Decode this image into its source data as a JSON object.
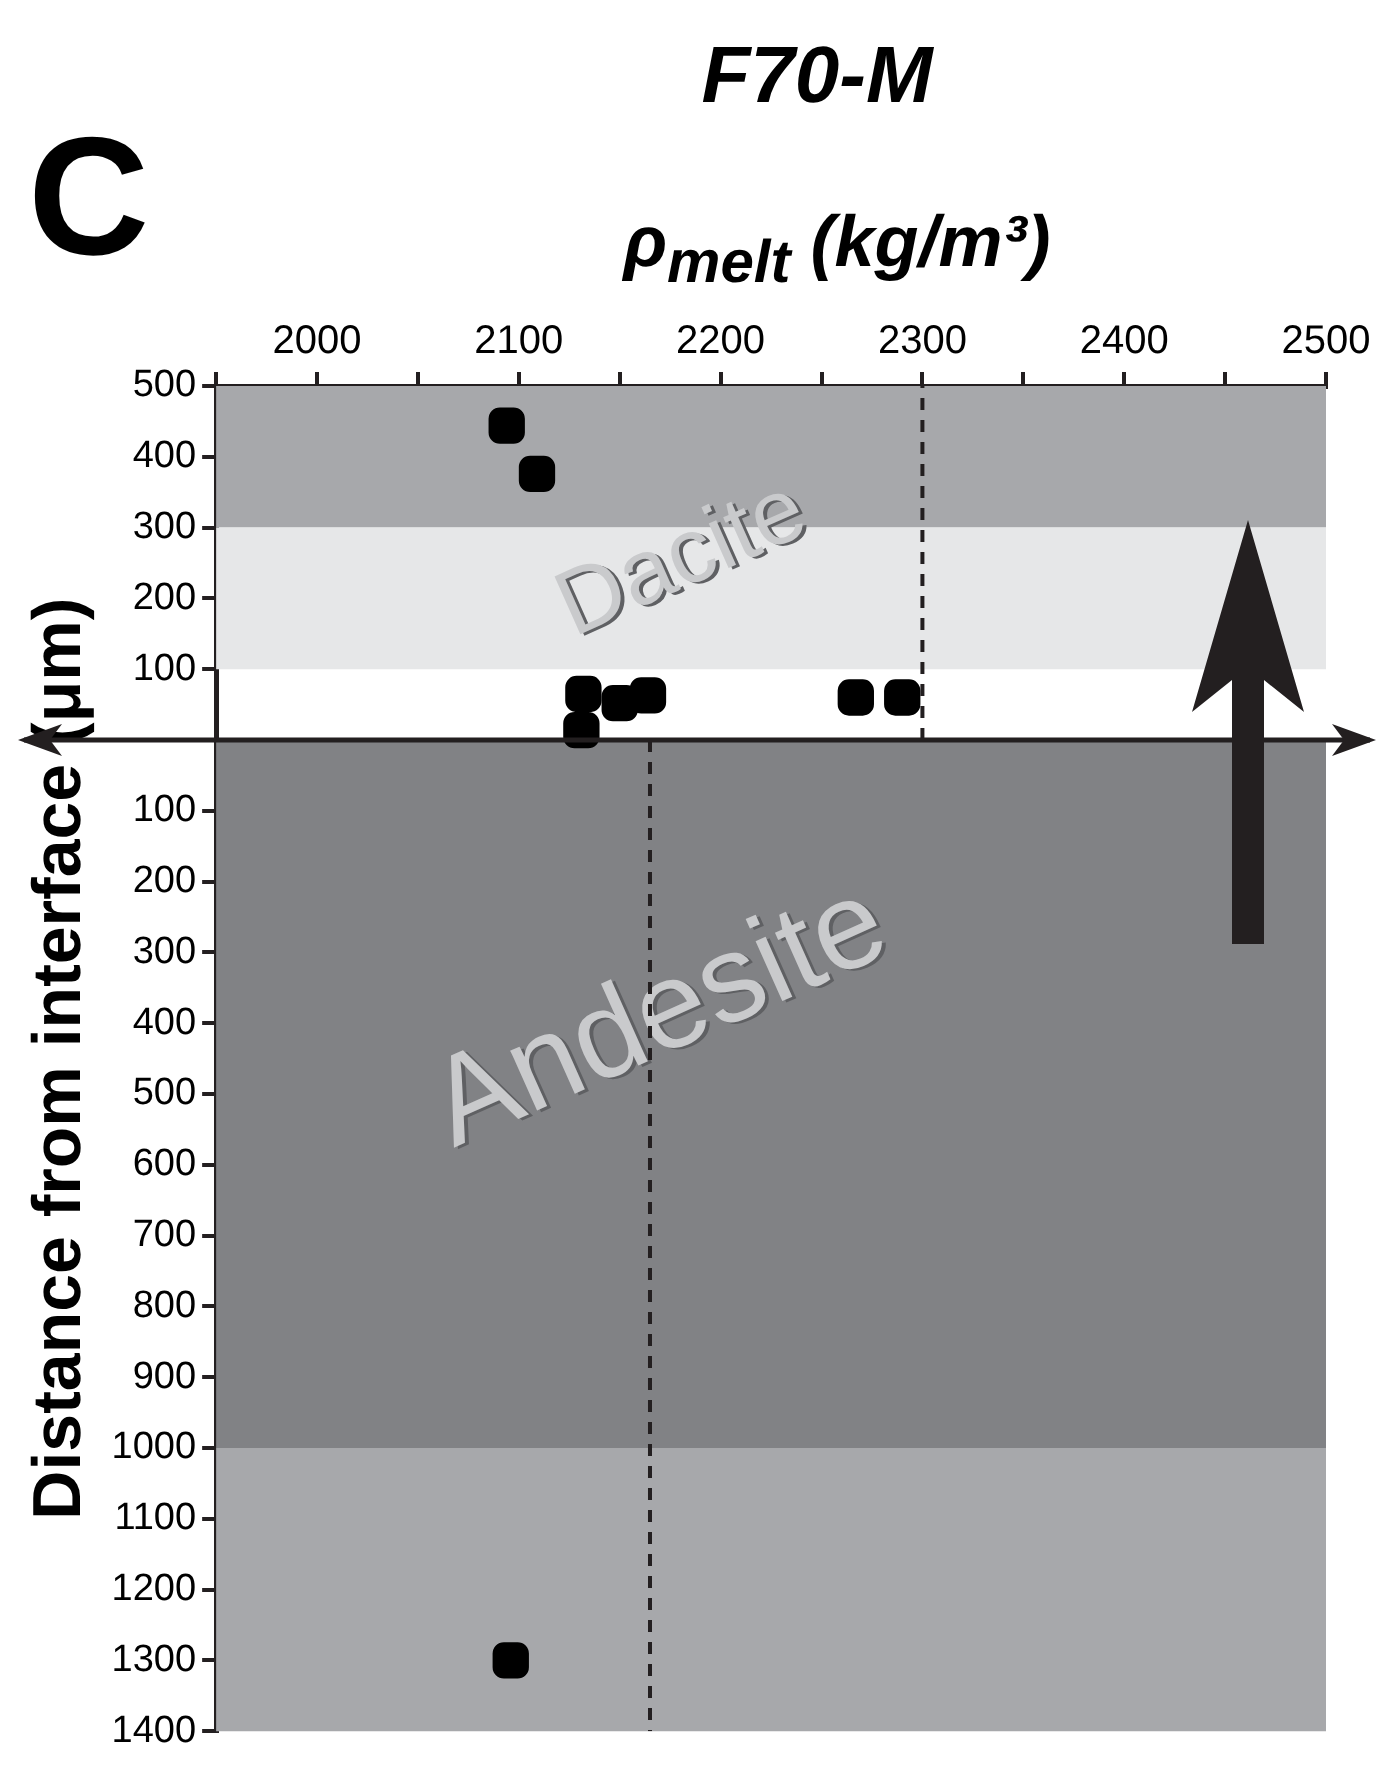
{
  "chart_data": {
    "type": "scatter",
    "title": "F70-M",
    "xlabel": "ρ$_{melt}$ (kg/m³)",
    "ylabel": "Distance from interface (μm)",
    "annotations": [
      "C",
      "Dacite",
      "Andesite"
    ],
    "xlim": [
      1950,
      2500
    ],
    "xticks": [
      {
        "value": 1950,
        "label": null
      },
      2000,
      {
        "value": 2050,
        "label": null
      },
      2100,
      {
        "value": 2150,
        "label": null
      },
      2200,
      {
        "value": 2250,
        "label": null
      },
      2300,
      {
        "value": 2350,
        "label": null
      },
      2400,
      {
        "value": 2450,
        "label": null
      },
      2500
    ],
    "ylim": [
      -1400,
      500
    ],
    "yticks": [
      500,
      400,
      300,
      200,
      100,
      {
        "value": -100,
        "label": "100"
      },
      {
        "value": -200,
        "label": "200"
      },
      {
        "value": -300,
        "label": "300"
      },
      {
        "value": -400,
        "label": "400"
      },
      {
        "value": -500,
        "label": "500"
      },
      {
        "value": -600,
        "label": "600"
      },
      {
        "value": -700,
        "label": "700"
      },
      {
        "value": -800,
        "label": "800"
      },
      {
        "value": -900,
        "label": "900"
      },
      {
        "value": -1000,
        "label": "1000"
      },
      {
        "value": -1100,
        "label": "1100"
      },
      {
        "value": -1200,
        "label": "1200"
      },
      {
        "value": -1300,
        "label": "1300"
      },
      {
        "value": -1400,
        "label": "1400"
      }
    ],
    "bands": [
      {
        "axis": "y",
        "from": 300,
        "to": 500,
        "color": "#a7a8ab"
      },
      {
        "axis": "y",
        "from": 100,
        "to": 300,
        "color": "#e6e7e8"
      },
      {
        "axis": "y",
        "from": -1000,
        "to": 0,
        "color": "#818285"
      },
      {
        "axis": "y",
        "from": -1400,
        "to": -1000,
        "color": "#a7a8ab"
      }
    ],
    "ref_lines": [
      {
        "axis": "y",
        "value": 0,
        "color": "#231f20"
      }
    ],
    "series": [
      {
        "color": "#000000",
        "marker": "square",
        "x": [
          2094,
          2109,
          2132,
          2131,
          2150,
          2164,
          2267,
          2290,
          2096
        ],
        "values": [
          444,
          376,
          65,
          14,
          52,
          63,
          60,
          60,
          -1300
        ]
      },
      {
        "type": "line",
        "color": "#231f20",
        "line_style": "dashed",
        "marker": "none",
        "x": [
          2300,
          2300
        ],
        "values": [
          0,
          500
        ]
      },
      {
        "type": "line",
        "color": "#231f20",
        "line_style": "dashed",
        "marker": "none",
        "x": [
          2165,
          2165
        ],
        "values": [
          0,
          -1400
        ]
      }
    ],
    "grid": false,
    "legend": false
  }
}
